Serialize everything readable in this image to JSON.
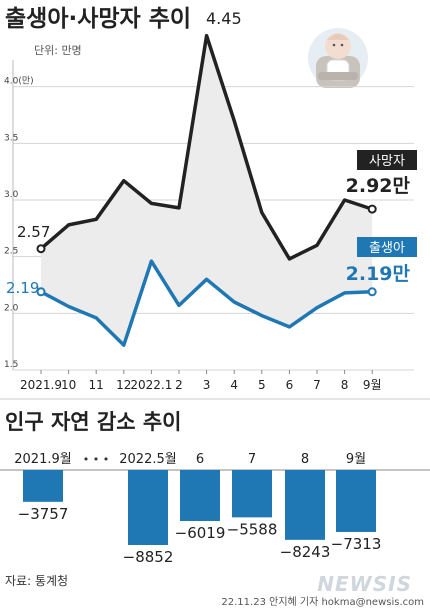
{
  "chart_data": [
    {
      "type": "line",
      "title": "출생아·사망자 추이",
      "unit_label": "단위: 만명",
      "categories": [
        "2021.9",
        "10",
        "11",
        "12",
        "2022.1",
        "2",
        "3",
        "4",
        "5",
        "6",
        "7",
        "8",
        "9월"
      ],
      "ylim": [
        1.5,
        4.5
      ],
      "y_ticks": [
        "1.5",
        "2.0",
        "2.5",
        "3.0",
        "3.5",
        "4.0(만)"
      ],
      "y_tick_values": [
        1.5,
        2.0,
        2.5,
        3.0,
        3.5,
        4.0
      ],
      "series": [
        {
          "name": "사망자",
          "color": "#222222",
          "values": [
            2.57,
            2.78,
            2.83,
            3.17,
            2.97,
            2.93,
            4.45,
            3.7,
            2.89,
            2.48,
            2.6,
            3.0,
            2.92
          ],
          "start_label": "2.57",
          "end_label": "2.92만",
          "peak_label": "4.45"
        },
        {
          "name": "출생아",
          "color": "#1f78b4",
          "values": [
            2.19,
            2.06,
            1.96,
            1.72,
            2.46,
            2.07,
            2.3,
            2.1,
            1.98,
            1.88,
            2.05,
            2.18,
            2.19
          ],
          "start_label": "2.19",
          "end_label": "2.19만"
        }
      ],
      "grid": true,
      "fill_between": true,
      "illustration": "baby-icon"
    },
    {
      "type": "bar",
      "title": "인구 자연 감소 추이",
      "categories": [
        "2021.9월",
        "2022.5월",
        "6",
        "7",
        "8",
        "9월"
      ],
      "gap_label": "• • •",
      "values": [
        -3757,
        -8852,
        -6019,
        -5588,
        -8243,
        -7313
      ],
      "value_labels": [
        "−3757",
        "−8852",
        "−6019",
        "−5588",
        "−8243",
        "−7313"
      ],
      "color": "#1f78b4"
    }
  ],
  "source": "자료: 통계청",
  "credit": "22.11.23 안지혜 기자  hokma@newsis.com",
  "brand": "NEWSIS"
}
